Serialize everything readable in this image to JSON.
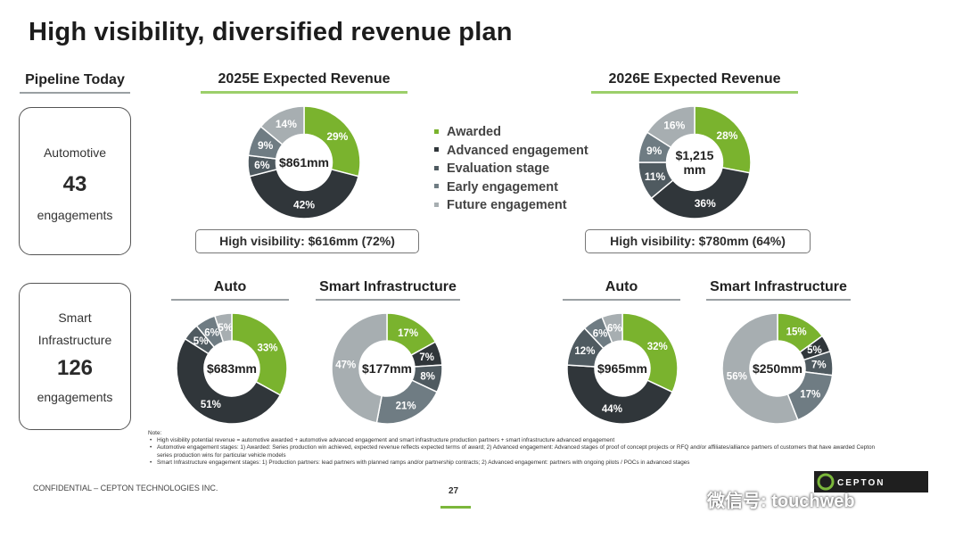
{
  "title": "High visibility, diversified revenue plan",
  "colors": {
    "awarded": "#7ab32e",
    "advanced": "#30363a",
    "evaluation": "#4f5a60",
    "early": "#6f7c83",
    "future": "#a7aeb1",
    "accent_green": "#7bb73b"
  },
  "pipeline": {
    "heading": "Pipeline Today",
    "automotive": {
      "label": "Automotive",
      "count": "43",
      "unit": "engagements"
    },
    "smart": {
      "label_line1": "Smart",
      "label_line2": "Infrastructure",
      "count": "126",
      "unit": "engagements"
    }
  },
  "headers": {
    "rev2025": "2025E Expected Revenue",
    "rev2026": "2026E Expected Revenue",
    "auto": "Auto",
    "smart": "Smart Infrastructure"
  },
  "legend": [
    {
      "label": "Awarded",
      "key": "awarded"
    },
    {
      "label": "Advanced engagement",
      "key": "advanced"
    },
    {
      "label": "Evaluation stage",
      "key": "evaluation"
    },
    {
      "label": "Early engagement",
      "key": "early"
    },
    {
      "label": "Future engagement",
      "key": "future"
    }
  ],
  "high_visibility": {
    "y2025": "High visibility: $616mm (72%)",
    "y2026": "High visibility: $780mm (64%)"
  },
  "chart_data": [
    {
      "id": "total-2025",
      "type": "pie",
      "title": "2025E Expected Revenue",
      "center_label": "$861mm",
      "slices": [
        {
          "category": "Awarded",
          "value": 29,
          "label": "29%"
        },
        {
          "category": "Advanced engagement",
          "value": 42,
          "label": "42%"
        },
        {
          "category": "Evaluation stage",
          "value": 6,
          "label": "6%"
        },
        {
          "category": "Early engagement",
          "value": 9,
          "label": "9%"
        },
        {
          "category": "Future engagement",
          "value": 14,
          "label": "14%"
        }
      ]
    },
    {
      "id": "total-2026",
      "type": "pie",
      "title": "2026E Expected Revenue",
      "center_label": "$1,215 mm",
      "slices": [
        {
          "category": "Awarded",
          "value": 28,
          "label": "28%"
        },
        {
          "category": "Advanced engagement",
          "value": 36,
          "label": "36%"
        },
        {
          "category": "Evaluation stage",
          "value": 11,
          "label": "11%"
        },
        {
          "category": "Early engagement",
          "value": 9,
          "label": "9%"
        },
        {
          "category": "Future engagement",
          "value": 16,
          "label": "16%"
        }
      ]
    },
    {
      "id": "auto-2025",
      "type": "pie",
      "title": "Auto",
      "center_label": "$683mm",
      "slices": [
        {
          "category": "Awarded",
          "value": 33,
          "label": "33%"
        },
        {
          "category": "Advanced engagement",
          "value": 51,
          "label": "51%"
        },
        {
          "category": "Evaluation stage",
          "value": 5,
          "label": "5%"
        },
        {
          "category": "Early engagement",
          "value": 6,
          "label": "6%"
        },
        {
          "category": "Future engagement",
          "value": 5,
          "label": "5%"
        }
      ]
    },
    {
      "id": "smart-2025",
      "type": "pie",
      "title": "Smart Infrastructure",
      "center_label": "$177mm",
      "slices": [
        {
          "category": "Awarded",
          "value": 17,
          "label": "17%"
        },
        {
          "category": "Advanced engagement",
          "value": 7,
          "label": "7%"
        },
        {
          "category": "Evaluation stage",
          "value": 8,
          "label": "8%"
        },
        {
          "category": "Early engagement",
          "value": 21,
          "label": "21%"
        },
        {
          "category": "Future engagement",
          "value": 47,
          "label": "47%"
        }
      ]
    },
    {
      "id": "auto-2026",
      "type": "pie",
      "title": "Auto",
      "center_label": "$965mm",
      "slices": [
        {
          "category": "Awarded",
          "value": 32,
          "label": "32%"
        },
        {
          "category": "Advanced engagement",
          "value": 44,
          "label": "44%"
        },
        {
          "category": "Evaluation stage",
          "value": 12,
          "label": "12%"
        },
        {
          "category": "Early engagement",
          "value": 6,
          "label": "6%"
        },
        {
          "category": "Future engagement",
          "value": 6,
          "label": "6%"
        }
      ]
    },
    {
      "id": "smart-2026",
      "type": "pie",
      "title": "Smart Infrastructure",
      "center_label": "$250mm",
      "slices": [
        {
          "category": "Awarded",
          "value": 15,
          "label": "15%"
        },
        {
          "category": "Advanced engagement",
          "value": 5,
          "label": "5%"
        },
        {
          "category": "Evaluation stage",
          "value": 7,
          "label": "7%"
        },
        {
          "category": "Early engagement",
          "value": 17,
          "label": "17%"
        },
        {
          "category": "Future engagement",
          "value": 56,
          "label": "56%"
        }
      ]
    }
  ],
  "notes": {
    "heading": "Note:",
    "lines": [
      "High visibility potential revenue = automotive awarded + automotive advanced engagement and smart infrastructure production partners + smart infrastructure advanced engagement",
      "Automotive engagement stages: 1) Awarded: Series production win achieved, expected revenue reflects expected terms of award; 2) Advanced engagement: Advanced stages of proof of concept projects or RFQ and/or affiliates/alliance partners of customers that have awarded Cepton series production wins for particular vehicle models",
      "Smart Infrastructure engagement stages: 1) Production partners: lead partners with planned ramps and/or partnership contracts; 2) Advanced engagement: partners with ongoing pilots / POCs in advanced stages"
    ]
  },
  "footer": "CONFIDENTIAL – CEPTON TECHNOLOGIES INC.",
  "page_number": "27",
  "logo_text": "CEPTON",
  "watermark": "微信号: touchweb"
}
